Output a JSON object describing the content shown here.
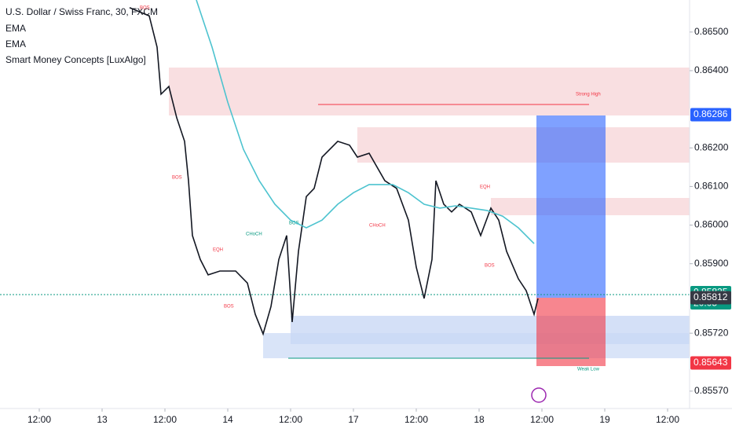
{
  "header": {
    "symbol": "U.S. Dollar / Swiss Franc, 30, FXCM",
    "indicators": [
      "EMA",
      "EMA",
      "Smart Money Concepts [LuxAlgo]"
    ]
  },
  "annotations": {
    "bos": "BOS",
    "eqh": "EQH",
    "choch": "CHoCH",
    "strong_high": "Strong High",
    "weak_low": "Weak Low"
  },
  "chart_data": {
    "type": "line",
    "xlim": [
      0,
      131.7
    ],
    "ylim": [
      0.85525,
      0.86583
    ],
    "xticks": [
      {
        "value": 7.5,
        "label": "12:00"
      },
      {
        "value": 19.5,
        "label": "13"
      },
      {
        "value": 31.5,
        "label": "12:00"
      },
      {
        "value": 43.5,
        "label": "14"
      },
      {
        "value": 55.5,
        "label": "12:00"
      },
      {
        "value": 67.5,
        "label": "17"
      },
      {
        "value": 79.5,
        "label": "12:00"
      },
      {
        "value": 91.5,
        "label": "18"
      },
      {
        "value": 103.5,
        "label": "12:00"
      },
      {
        "value": 115.5,
        "label": "19"
      },
      {
        "value": 127.5,
        "label": "12:00"
      }
    ],
    "yticks": [
      {
        "value": 0.865,
        "label": "0.86500"
      },
      {
        "value": 0.864,
        "label": "0.86400"
      },
      {
        "value": 0.862,
        "label": "0.86200"
      },
      {
        "value": 0.861,
        "label": "0.86100"
      },
      {
        "value": 0.86,
        "label": "0.86000"
      },
      {
        "value": 0.859,
        "label": "0.85900"
      },
      {
        "value": 0.8572,
        "label": "0.85720"
      },
      {
        "value": 0.8557,
        "label": "0.85570"
      }
    ],
    "price_tags": [
      {
        "value": 0.86286,
        "label": "0.86286",
        "color": "#2962ff"
      },
      {
        "value": 0.85825,
        "label": "0.85825",
        "color": "#089981",
        "sub": "20:05"
      },
      {
        "value": 0.85812,
        "label": "0.85812",
        "color": "#363a45"
      },
      {
        "value": 0.85643,
        "label": "0.85643",
        "color": "#f23645"
      }
    ],
    "series": [
      {
        "color": "#131722",
        "x": [
          24.75,
          28.5,
          30,
          30.75,
          32.25,
          33.75,
          35.25,
          36,
          36.75,
          38.25,
          39.75,
          42,
          45,
          47.25,
          48.75,
          50.25,
          51.75,
          53.25,
          54.75,
          55.8,
          57,
          58.5,
          60,
          61.5,
          64.5,
          66.75,
          68.25,
          70.5,
          73.5,
          75.75,
          78,
          79.5,
          81,
          82.5,
          83.25,
          84.75,
          86.25,
          87.75,
          90,
          91.8,
          93.75,
          95.25,
          96.75,
          99,
          100.5,
          102,
          102.75
        ],
        "values": [
          0.86563,
          0.86542,
          0.86461,
          0.86339,
          0.86359,
          0.86278,
          0.86217,
          0.86115,
          0.85973,
          0.85911,
          0.85871,
          0.85881,
          0.85881,
          0.8585,
          0.85769,
          0.85718,
          0.85789,
          0.85911,
          0.85973,
          0.85749,
          0.85932,
          0.86074,
          0.86095,
          0.86176,
          0.86217,
          0.86207,
          0.86176,
          0.86186,
          0.86115,
          0.86095,
          0.86013,
          0.85891,
          0.8581,
          0.85911,
          0.86115,
          0.86054,
          0.86034,
          0.86054,
          0.86034,
          0.85973,
          0.86044,
          0.86013,
          0.85932,
          0.85861,
          0.8583,
          0.85769,
          0.8581
        ]
      },
      {
        "name": "EMA",
        "color": "#4dc3cf",
        "x": [
          37.5,
          40.5,
          43.5,
          46.5,
          49.5,
          52.5,
          55.5,
          58.5,
          61.5,
          64.5,
          67.5,
          70.5,
          75,
          78,
          81,
          84,
          87,
          90,
          93,
          96,
          99,
          102
        ],
        "values": [
          0.86583,
          0.86461,
          0.86318,
          0.86196,
          0.86115,
          0.86054,
          0.86013,
          0.85993,
          0.86013,
          0.86054,
          0.86084,
          0.86105,
          0.86105,
          0.86084,
          0.86054,
          0.86044,
          0.8605,
          0.86044,
          0.86038,
          0.86023,
          0.85993,
          0.85952
        ]
      }
    ]
  }
}
